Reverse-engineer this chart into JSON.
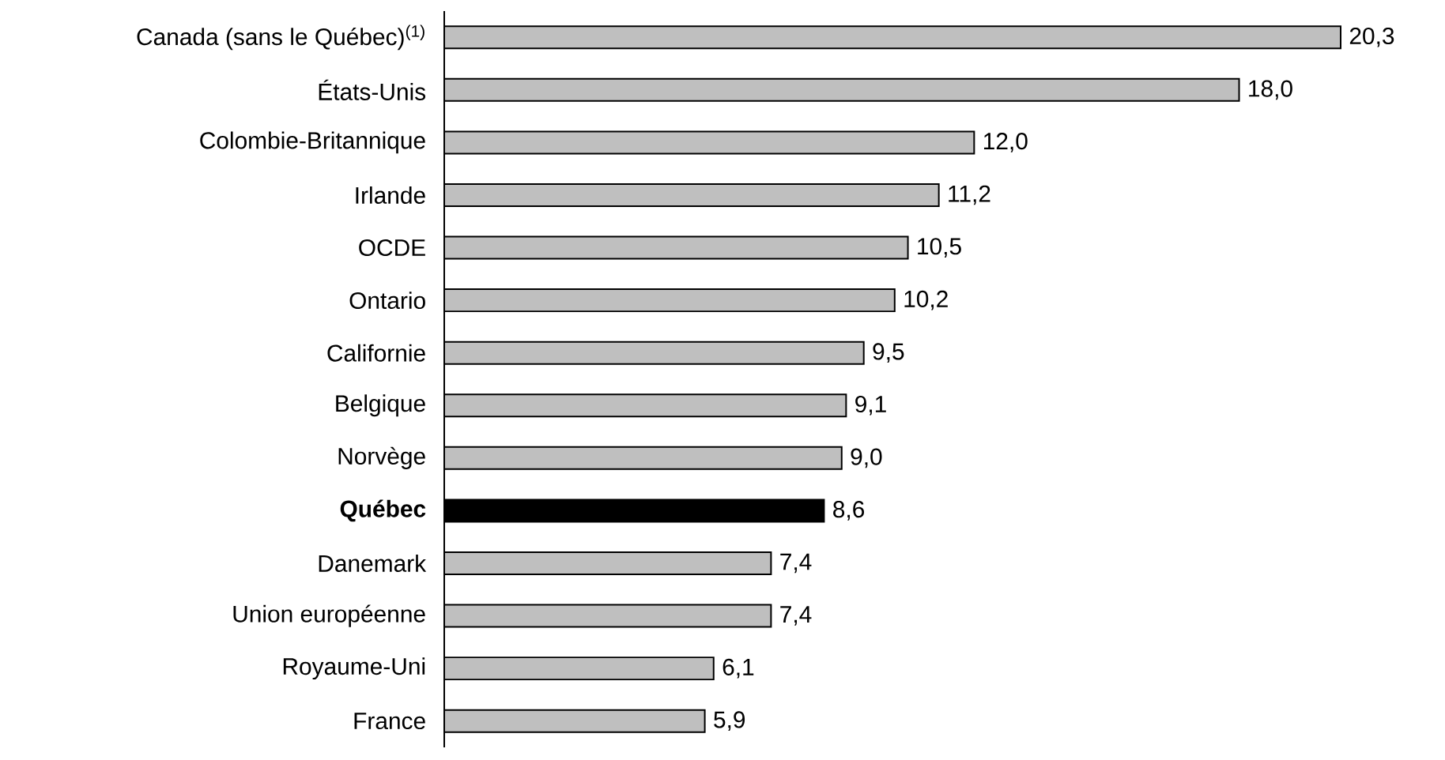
{
  "chart_data": {
    "type": "bar",
    "orientation": "horizontal",
    "categories": [
      "Canada (sans le Québec)$^{(1)}$",
      "États-Unis",
      "Colombie-Britannique",
      "Irlande",
      "OCDE",
      "Ontario",
      "Californie",
      "Belgique",
      "Norvège",
      "**Québec**",
      "Danemark",
      "Union européenne",
      "Royaume-Uni",
      "France"
    ],
    "values": [
      20.3,
      18.0,
      12.0,
      11.2,
      10.5,
      10.2,
      9.5,
      9.1,
      9.0,
      8.6,
      7.4,
      7.4,
      6.1,
      5.9
    ],
    "value_labels": [
      "20,3",
      "18,0",
      "12,0",
      "11,2",
      "10,5",
      "10,2",
      "9,5",
      "9,1",
      "9,0",
      "8,6",
      "7,4",
      "7,4",
      "6,1",
      "5,9"
    ],
    "colors": [
      "#bfbfbf",
      "#bfbfbf",
      "#bfbfbf",
      "#bfbfbf",
      "#bfbfbf",
      "#bfbfbf",
      "#bfbfbf",
      "#bfbfbf",
      "#bfbfbf",
      "#000000",
      "#bfbfbf",
      "#bfbfbf",
      "#bfbfbf",
      "#bfbfbf"
    ]
  }
}
